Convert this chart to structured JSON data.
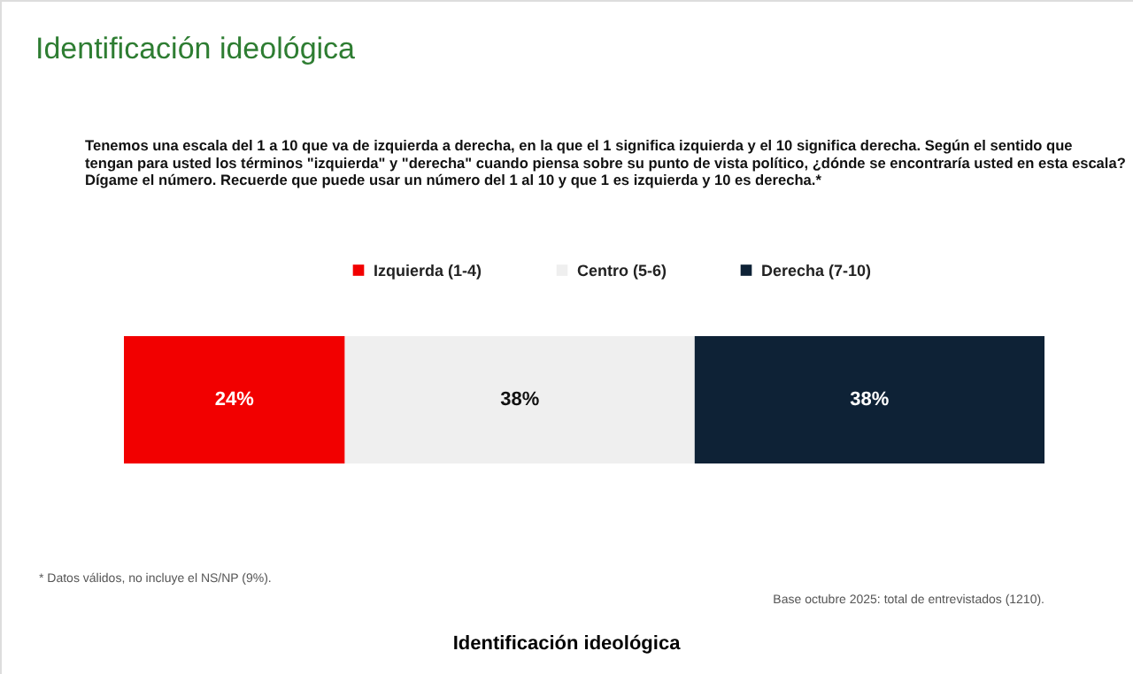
{
  "chart_data": {
    "type": "bar",
    "orientation": "horizontal",
    "stacked": true,
    "title": "Identificación ideológica",
    "categories": [
      null
    ],
    "xlim": [
      0,
      100
    ],
    "legend": "top",
    "series": [
      {
        "name": "Izquierda (1-4)",
        "color": "#f20000",
        "values": [
          24
        ],
        "value_labels": [
          "24%"
        ]
      },
      {
        "name": "Centro (5-6)",
        "color": "#efefef",
        "values": [
          38
        ],
        "value_labels": [
          "38%"
        ]
      },
      {
        "name": "Derecha (7-10)",
        "color": "#0e2236",
        "values": [
          38
        ],
        "value_labels": [
          "38%"
        ]
      }
    ],
    "annotations": [
      "Tenemos una escala del 1 a 10 que va de izquierda a derecha, en la que el 1 significa izquierda y el 10 significa derecha. Según el sentido que tengan para usted los términos \"izquierda\" y \"derecha\" cuando piensa sobre su punto de vista político, ¿dónde se encontraría usted en esta escala? Dígame el número. Recuerde que puede usar un número del 1 al 10 y que 1 es izquierda y 10 es derecha.*",
      "* Datos válidos, no incluye el NS/NP (9%).",
      "Base octubre 2025: total de entrevistados (1210).",
      "Identificación ideológica"
    ]
  }
}
